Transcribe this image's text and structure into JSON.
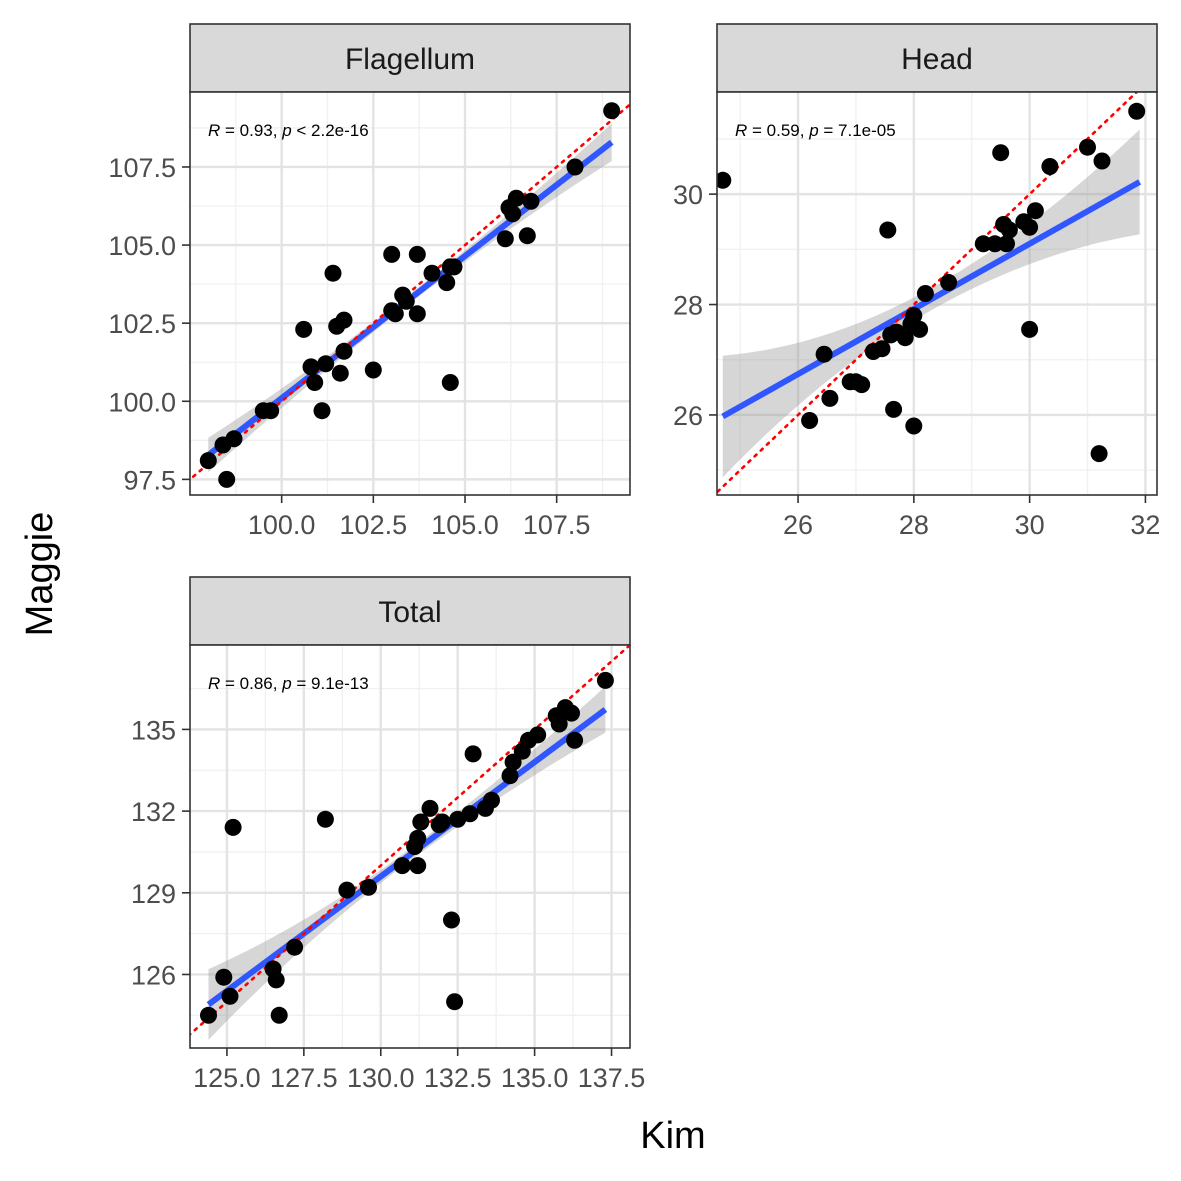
{
  "x_axis_title": "Kim",
  "y_axis_title": "Maggie",
  "chart_data": [
    {
      "type": "scatter",
      "facet": "Flagellum",
      "stats": {
        "r_label": "R",
        "r_text": " = 0.93, ",
        "p_label": "p",
        "p_text": " < 2.2e-16"
      },
      "xlim": [
        97.5,
        109.5
      ],
      "ylim": [
        97.0,
        109.9
      ],
      "x_ticks": [
        100.0,
        102.5,
        105.0,
        107.5
      ],
      "x_tick_labels": [
        "100.0",
        "102.5",
        "105.0",
        "107.5"
      ],
      "y_ticks": [
        97.5,
        100.0,
        102.5,
        105.0,
        107.5
      ],
      "y_tick_labels": [
        "97.5",
        "100.0",
        "102.5",
        "105.0",
        "107.5"
      ],
      "fit": {
        "slope": 0.91,
        "intercept": 9.1,
        "x_range": [
          98.0,
          109.0
        ],
        "ci_start": 0.55,
        "ci_mid": 0.15,
        "ci_end": 0.6
      },
      "identity_line": true,
      "points": [
        [
          98.0,
          98.1
        ],
        [
          98.4,
          98.6
        ],
        [
          98.5,
          97.5
        ],
        [
          98.7,
          98.8
        ],
        [
          99.5,
          99.7
        ],
        [
          99.7,
          99.7
        ],
        [
          100.6,
          102.3
        ],
        [
          100.8,
          101.1
        ],
        [
          100.9,
          100.6
        ],
        [
          101.1,
          99.7
        ],
        [
          101.2,
          101.2
        ],
        [
          101.4,
          104.1
        ],
        [
          101.5,
          102.4
        ],
        [
          101.6,
          100.9
        ],
        [
          101.7,
          102.6
        ],
        [
          101.7,
          101.6
        ],
        [
          102.5,
          101.0
        ],
        [
          103.0,
          104.7
        ],
        [
          103.0,
          102.9
        ],
        [
          103.1,
          102.8
        ],
        [
          103.3,
          103.4
        ],
        [
          103.4,
          103.2
        ],
        [
          103.7,
          104.7
        ],
        [
          103.7,
          102.8
        ],
        [
          104.1,
          104.1
        ],
        [
          104.5,
          103.8
        ],
        [
          104.6,
          104.3
        ],
        [
          104.6,
          100.6
        ],
        [
          104.7,
          104.3
        ],
        [
          106.1,
          105.2
        ],
        [
          106.2,
          106.2
        ],
        [
          106.3,
          106.0
        ],
        [
          106.4,
          106.5
        ],
        [
          106.7,
          105.3
        ],
        [
          106.8,
          106.4
        ],
        [
          108.0,
          107.5
        ],
        [
          109.0,
          109.3
        ]
      ]
    },
    {
      "type": "scatter",
      "facet": "Head",
      "stats": {
        "r_label": "R",
        "r_text": " = 0.59, ",
        "p_label": "p",
        "p_text": " = 7.1e-05"
      },
      "xlim": [
        24.6,
        32.2
      ],
      "ylim": [
        24.55,
        31.85
      ],
      "x_ticks": [
        26,
        28,
        30,
        32
      ],
      "x_tick_labels": [
        "26",
        "28",
        "30",
        "32"
      ],
      "y_ticks": [
        26,
        28,
        30
      ],
      "y_tick_labels": [
        "26",
        "28",
        "30"
      ],
      "fit": {
        "slope": 0.59,
        "intercept": 11.4,
        "x_range": [
          24.7,
          31.9
        ],
        "ci_start": 1.1,
        "ci_mid": 0.2,
        "ci_end": 0.95
      },
      "identity_line": true,
      "points": [
        [
          24.7,
          30.25
        ],
        [
          26.2,
          25.9
        ],
        [
          26.45,
          27.1
        ],
        [
          26.55,
          26.3
        ],
        [
          26.9,
          26.6
        ],
        [
          27.0,
          26.6
        ],
        [
          27.1,
          26.55
        ],
        [
          27.3,
          27.15
        ],
        [
          27.45,
          27.2
        ],
        [
          27.55,
          29.35
        ],
        [
          27.6,
          27.45
        ],
        [
          27.65,
          26.1
        ],
        [
          27.7,
          27.5
        ],
        [
          27.85,
          27.4
        ],
        [
          27.95,
          27.65
        ],
        [
          28.0,
          25.8
        ],
        [
          28.0,
          27.8
        ],
        [
          28.1,
          27.55
        ],
        [
          28.2,
          28.2
        ],
        [
          28.6,
          28.4
        ],
        [
          29.2,
          29.1
        ],
        [
          29.4,
          29.1
        ],
        [
          29.5,
          30.75
        ],
        [
          29.55,
          29.45
        ],
        [
          29.6,
          29.1
        ],
        [
          29.65,
          29.35
        ],
        [
          29.9,
          29.5
        ],
        [
          30.0,
          29.4
        ],
        [
          30.0,
          27.55
        ],
        [
          30.1,
          29.7
        ],
        [
          30.35,
          30.5
        ],
        [
          31.0,
          30.85
        ],
        [
          31.2,
          25.3
        ],
        [
          31.25,
          30.6
        ],
        [
          31.85,
          31.5
        ]
      ]
    },
    {
      "type": "scatter",
      "facet": "Total",
      "stats": {
        "r_label": "R",
        "r_text": " = 0.86, ",
        "p_label": "p",
        "p_text": " = 9.1e-13"
      },
      "xlim": [
        123.8,
        138.1
      ],
      "ylim": [
        123.3,
        138.1
      ],
      "x_ticks": [
        125.0,
        127.5,
        130.0,
        132.5,
        135.0,
        137.5
      ],
      "x_tick_labels": [
        "125.0",
        "127.5",
        "130.0",
        "132.5",
        "135.0",
        "137.5"
      ],
      "y_ticks": [
        126,
        129,
        132,
        135
      ],
      "y_tick_labels": [
        "126",
        "129",
        "132",
        "135"
      ],
      "fit": {
        "slope": 0.84,
        "intercept": 20.4,
        "x_range": [
          124.4,
          137.3
        ],
        "ci_start": 1.3,
        "ci_mid": 0.22,
        "ci_end": 0.85
      },
      "identity_line": true,
      "points": [
        [
          124.4,
          124.5
        ],
        [
          124.9,
          125.9
        ],
        [
          125.1,
          125.2
        ],
        [
          125.2,
          131.4
        ],
        [
          126.5,
          126.2
        ],
        [
          126.6,
          125.8
        ],
        [
          126.7,
          124.5
        ],
        [
          127.2,
          127.0
        ],
        [
          128.2,
          131.7
        ],
        [
          128.9,
          129.1
        ],
        [
          129.6,
          129.2
        ],
        [
          130.7,
          130.0
        ],
        [
          131.1,
          130.7
        ],
        [
          131.2,
          131.0
        ],
        [
          131.3,
          131.6
        ],
        [
          131.6,
          132.1
        ],
        [
          131.2,
          130.0
        ],
        [
          131.9,
          131.5
        ],
        [
          132.0,
          131.6
        ],
        [
          132.3,
          128.0
        ],
        [
          132.4,
          125.0
        ],
        [
          132.5,
          131.7
        ],
        [
          132.9,
          131.9
        ],
        [
          133.0,
          134.1
        ],
        [
          133.4,
          132.1
        ],
        [
          133.6,
          132.4
        ],
        [
          134.2,
          133.3
        ],
        [
          134.3,
          133.8
        ],
        [
          134.6,
          134.2
        ],
        [
          134.8,
          134.6
        ],
        [
          135.1,
          134.8
        ],
        [
          135.7,
          135.5
        ],
        [
          135.8,
          135.2
        ],
        [
          136.0,
          135.8
        ],
        [
          136.2,
          135.6
        ],
        [
          136.3,
          134.6
        ],
        [
          137.3,
          136.8
        ]
      ]
    }
  ]
}
